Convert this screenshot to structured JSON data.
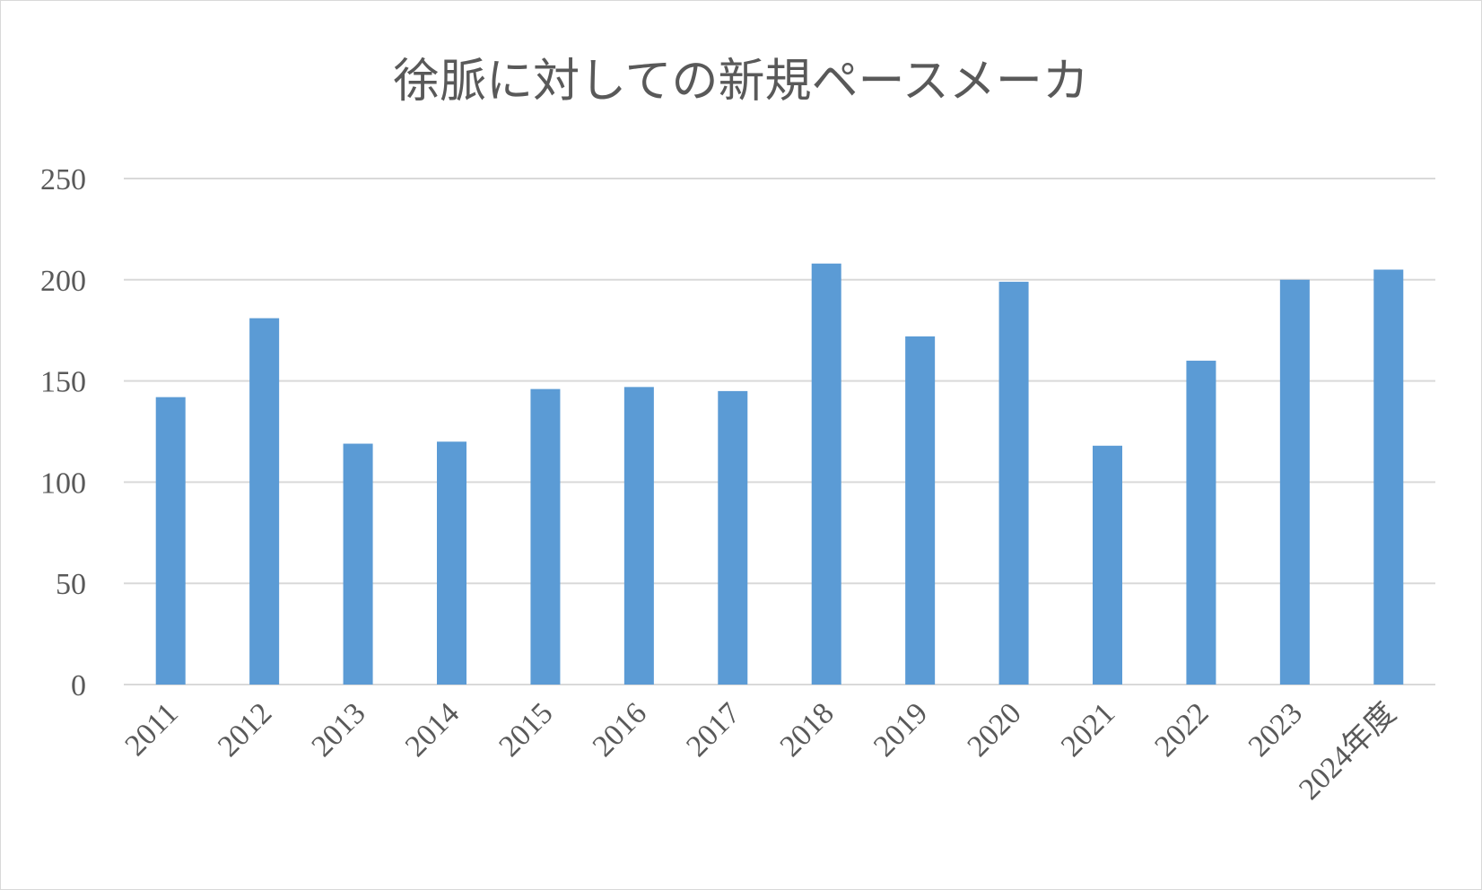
{
  "chart_data": {
    "type": "bar",
    "title": "徐脈に対しての新規ペースメーカ",
    "xlabel": "",
    "ylabel": "",
    "categories": [
      "2011",
      "2012",
      "2013",
      "2014",
      "2015",
      "2016",
      "2017",
      "2018",
      "2019",
      "2020",
      "2021",
      "2022",
      "2023",
      "2024年度"
    ],
    "values": [
      142,
      181,
      119,
      120,
      146,
      147,
      145,
      208,
      172,
      199,
      118,
      160,
      200,
      205
    ],
    "ylim": [
      0,
      250
    ],
    "yticks": [
      "0",
      "50",
      "100",
      "150",
      "200",
      "250"
    ],
    "grid": true,
    "legend": "none",
    "bar_color": "#5b9bd5",
    "grid_color": "#d9d9d9",
    "text_color": "#595959"
  }
}
